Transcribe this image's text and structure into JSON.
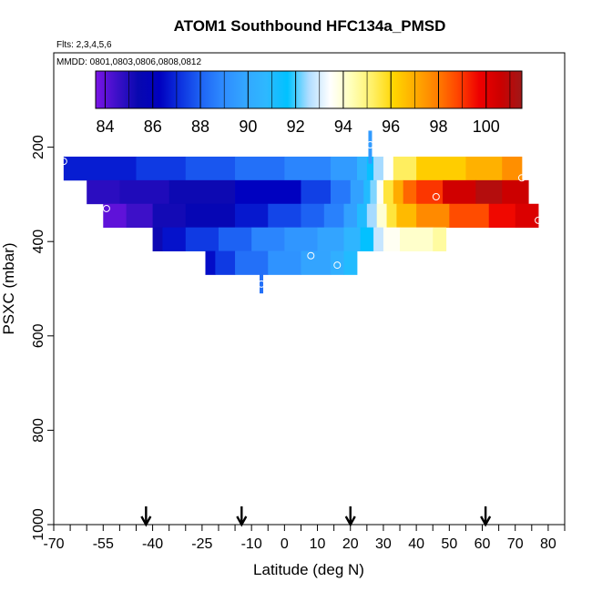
{
  "chart_data": {
    "type": "heatmap",
    "title": "ATOM1 Southbound HFC134a_PMSD",
    "flights_note": "Flts: 2,3,4,5,6",
    "dates_note": "MMDD: 0801,0803,0806,0808,0812",
    "xlabel": "Latitude (deg N)",
    "ylabel": "PSXC (mbar)",
    "xlim": [
      -70,
      85
    ],
    "ylim": [
      1000,
      0
    ],
    "x_ticks": [
      -70,
      -55,
      -40,
      -25,
      -10,
      0,
      10,
      20,
      30,
      40,
      50,
      60,
      70,
      80
    ],
    "x_tick_labels": [
      "-70",
      "-55",
      "-40",
      "-25",
      "-10",
      "0",
      "10",
      "20",
      "30",
      "40",
      "50",
      "60",
      "70",
      "80"
    ],
    "x_minor_ticks": [
      -65,
      -60,
      -50,
      -45,
      -35,
      -30,
      -20,
      -15,
      -5,
      5,
      15,
      25,
      35,
      45,
      55,
      65,
      75,
      85
    ],
    "y_ticks": [
      200,
      400,
      600,
      800,
      1000
    ],
    "y_tick_labels": [
      "200",
      "400",
      "600",
      "800",
      "1000"
    ],
    "colorbar": {
      "min": 83.6,
      "max": 101.5,
      "ticks": [
        84,
        86,
        88,
        90,
        92,
        94,
        96,
        98,
        100
      ],
      "tick_labels": [
        "84",
        "86",
        "88",
        "90",
        "92",
        "94",
        "96",
        "98",
        "100"
      ],
      "colors": [
        "#7a14e6",
        "#3d10c8",
        "#0808b0",
        "#0000bf",
        "#0d33e0",
        "#1f66f5",
        "#2e8cff",
        "#33a6ff",
        "#2eb8ff",
        "#00c2ff",
        "#b0ddff",
        "#ffffff",
        "#ffffb8",
        "#fff066",
        "#ffd500",
        "#ffab00",
        "#ff7f00",
        "#ff4400",
        "#ee0000",
        "#cc0000",
        "#a01818"
      ]
    },
    "rows": [
      {
        "p0": 220,
        "p1": 270,
        "segments": [
          [
            -67,
            -45,
            86.8
          ],
          [
            -45,
            -30,
            87.3
          ],
          [
            -30,
            -15,
            87.8
          ],
          [
            -15,
            0,
            88.3
          ],
          [
            0,
            14,
            88.8
          ],
          [
            14,
            22,
            89.5
          ],
          [
            22,
            25,
            90.5
          ],
          [
            25,
            27,
            91.5
          ],
          [
            27,
            30,
            92.5
          ],
          [
            30,
            33,
            93.5
          ],
          [
            33,
            40,
            95.3
          ],
          [
            40,
            55,
            96.3
          ],
          [
            55,
            66,
            96.9
          ],
          [
            66,
            72,
            97.6
          ]
        ]
      },
      {
        "p0": 270,
        "p1": 320,
        "segments": [
          [
            -60,
            -50,
            84.8
          ],
          [
            -50,
            -35,
            85.0
          ],
          [
            -35,
            -15,
            85.3
          ],
          [
            -15,
            5,
            86.3
          ],
          [
            5,
            14,
            87.4
          ],
          [
            14,
            20,
            88.5
          ],
          [
            20,
            24,
            89.7
          ],
          [
            24,
            26,
            91.0
          ],
          [
            26,
            28,
            92.3
          ],
          [
            28,
            30,
            93.6
          ],
          [
            30,
            33,
            95.6
          ],
          [
            33,
            36,
            97.0
          ],
          [
            36,
            40,
            98.3
          ],
          [
            40,
            48,
            99.0
          ],
          [
            48,
            58,
            100.5
          ],
          [
            58,
            66,
            101.1
          ],
          [
            66,
            74,
            100.6
          ]
        ]
      },
      {
        "p0": 320,
        "p1": 370,
        "segments": [
          [
            -55,
            -48,
            84.0
          ],
          [
            -48,
            -40,
            84.5
          ],
          [
            -40,
            -30,
            85.2
          ],
          [
            -30,
            -15,
            85.6
          ],
          [
            -15,
            -5,
            86.7
          ],
          [
            -5,
            5,
            87.5
          ],
          [
            5,
            12,
            88.0
          ],
          [
            12,
            18,
            88.7
          ],
          [
            18,
            22,
            89.7
          ],
          [
            22,
            25,
            91.0
          ],
          [
            25,
            28,
            92.5
          ],
          [
            28,
            31,
            94.0
          ],
          [
            31,
            34,
            95.6
          ],
          [
            34,
            40,
            96.7
          ],
          [
            40,
            50,
            97.7
          ],
          [
            50,
            62,
            98.7
          ],
          [
            62,
            70,
            99.6
          ],
          [
            70,
            77,
            100.2
          ]
        ]
      },
      {
        "p0": 370,
        "p1": 420,
        "segments": [
          [
            -40,
            -37,
            85.3
          ],
          [
            -37,
            -30,
            86.6
          ],
          [
            -30,
            -20,
            87.3
          ],
          [
            -20,
            -10,
            88.0
          ],
          [
            -10,
            0,
            88.8
          ],
          [
            0,
            10,
            89.3
          ],
          [
            10,
            18,
            89.8
          ],
          [
            18,
            23,
            90.6
          ],
          [
            23,
            27,
            91.6
          ],
          [
            27,
            30,
            92.8
          ],
          [
            30,
            35,
            93.6
          ],
          [
            35,
            45,
            94.1
          ],
          [
            45,
            49,
            94.6
          ]
        ]
      },
      {
        "p0": 420,
        "p1": 470,
        "segments": [
          [
            -24,
            -21,
            86.5
          ],
          [
            -21,
            -15,
            87.3
          ],
          [
            -15,
            -5,
            88.3
          ],
          [
            -5,
            5,
            89.2
          ],
          [
            5,
            14,
            89.8
          ],
          [
            14,
            18,
            90.3
          ],
          [
            18,
            22,
            91.0
          ]
        ]
      }
    ],
    "vertical_strips": [
      {
        "lat": 26,
        "p0": 165,
        "p1": 235,
        "value": 89.5
      },
      {
        "lat": -7,
        "p0": 470,
        "p1": 510,
        "value": 88.3
      }
    ],
    "circle_markers": [
      {
        "lat": -67,
        "p": 230
      },
      {
        "lat": 26,
        "p": 195
      },
      {
        "lat": 72,
        "p": 265
      },
      {
        "lat": 46,
        "p": 305
      },
      {
        "lat": -54,
        "p": 330
      },
      {
        "lat": 77,
        "p": 355
      },
      {
        "lat": 8,
        "p": 430
      },
      {
        "lat": 16,
        "p": 450
      },
      {
        "lat": -7,
        "p": 490
      }
    ],
    "flight_arrows": [
      -42,
      -13,
      20,
      61
    ]
  }
}
